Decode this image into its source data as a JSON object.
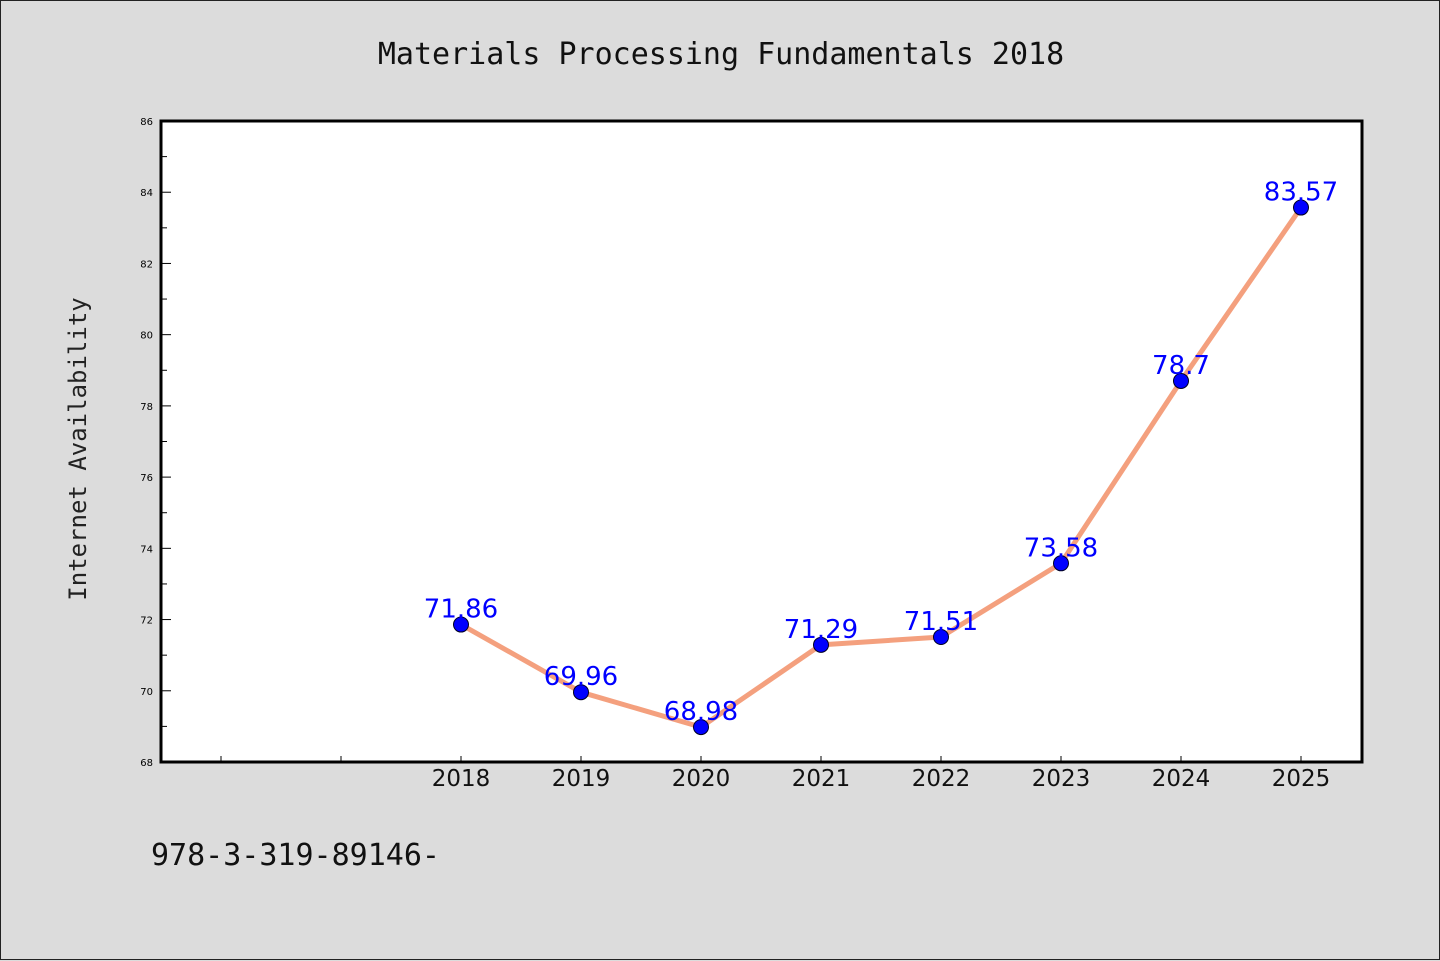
{
  "chart_data": {
    "type": "line",
    "title": "Materials Processing Fundamentals 2018",
    "xlabel": "",
    "ylabel": "Internet Availability",
    "categories": [
      "2018",
      "2019",
      "2020",
      "2021",
      "2022",
      "2023",
      "2024",
      "2025"
    ],
    "series": [
      {
        "values": [
          71.86,
          69.96,
          68.98,
          71.29,
          71.51,
          73.58,
          78.7,
          83.57
        ],
        "data_labels": [
          "71.86",
          "69.96",
          "68.98",
          "71.29",
          "71.51",
          "73.58",
          "78.7",
          "83.57"
        ],
        "line_color": "#f4a07e",
        "marker_color": "#0000ff"
      }
    ],
    "ylim": [
      68,
      86
    ],
    "y_ticks": [
      "68",
      "70",
      "72",
      "74",
      "76",
      "78",
      "80",
      "82",
      "84",
      "86"
    ],
    "grid": false,
    "legend": "none"
  },
  "footnote": "978-3-319-89146-",
  "colors": {
    "background": "#dcdcdc",
    "plot_background": "#ffffff",
    "axes": "#000000"
  }
}
